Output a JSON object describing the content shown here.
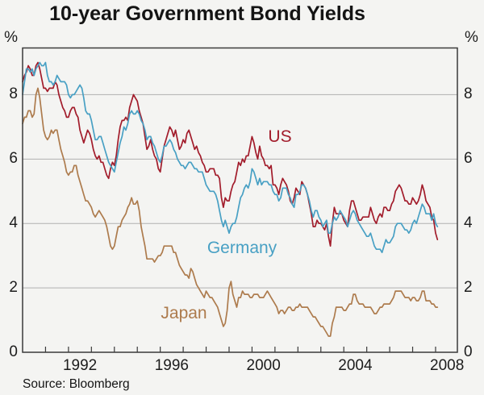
{
  "title": "10-year Government Bond Yields",
  "percent_left": "%",
  "percent_right": "%",
  "source": "Source: Bloomberg",
  "chart_data": {
    "type": "line",
    "title": "10-year Government Bond Yields",
    "xlabel": "",
    "ylabel": "%",
    "x_start_year": 1990,
    "x_points_per_year": 12,
    "x_end": 2008.95,
    "ylim": [
      0,
      9.45
    ],
    "y_ticks": [
      0,
      2,
      4,
      6,
      8
    ],
    "gridlines": [
      2,
      4,
      6,
      8
    ],
    "grid_color": "#b0b0b0",
    "frame_color": "#3a3a3a",
    "x_tick_years": [
      1991,
      1992,
      1993,
      1994,
      1995,
      1996,
      1997,
      1998,
      1999,
      2000,
      2001,
      2002,
      2003,
      2004,
      2005,
      2006,
      2007,
      2008
    ],
    "x_label_years": [
      1992,
      1996,
      2000,
      2004,
      2008
    ],
    "legend_position": "inline-annotations",
    "series": [
      {
        "name": "US",
        "color": "#a21c2b",
        "values": [
          8.4,
          8.6,
          8.7,
          8.9,
          8.8,
          8.6,
          8.6,
          8.9,
          9.0,
          8.8,
          8.5,
          8.2,
          8.2,
          8.1,
          8.2,
          8.2,
          8.2,
          8.4,
          8.3,
          8.0,
          7.8,
          7.6,
          7.5,
          7.3,
          7.3,
          7.5,
          7.6,
          7.6,
          7.4,
          7.3,
          6.9,
          6.7,
          6.5,
          6.7,
          6.9,
          6.8,
          6.6,
          6.3,
          6.1,
          6.0,
          6.1,
          5.9,
          5.9,
          5.7,
          5.5,
          5.4,
          5.7,
          5.9,
          5.8,
          6.1,
          6.6,
          7.0,
          7.2,
          7.2,
          7.3,
          7.2,
          7.6,
          7.8,
          8.0,
          7.9,
          7.8,
          7.5,
          7.3,
          7.1,
          6.7,
          6.3,
          6.4,
          6.6,
          6.3,
          6.1,
          6.0,
          5.7,
          5.6,
          6.0,
          6.4,
          6.6,
          6.8,
          7.0,
          6.9,
          6.7,
          6.9,
          6.6,
          6.3,
          6.4,
          6.6,
          6.5,
          6.8,
          6.9,
          6.7,
          6.5,
          6.3,
          6.4,
          6.2,
          6.1,
          5.9,
          5.8,
          5.6,
          5.6,
          5.7,
          5.7,
          5.7,
          5.5,
          5.5,
          5.4,
          4.8,
          4.5,
          4.8,
          4.7,
          4.7,
          5.0,
          5.2,
          5.3,
          5.6,
          5.9,
          5.8,
          6.0,
          5.9,
          6.1,
          6.1,
          6.4,
          6.7,
          6.5,
          6.2,
          6.0,
          6.4,
          6.1,
          6.0,
          5.8,
          5.8,
          5.7,
          5.8,
          5.2,
          5.2,
          5.1,
          4.9,
          5.2,
          5.4,
          5.3,
          5.2,
          5.0,
          4.7,
          4.6,
          4.8,
          5.1,
          5.0,
          4.9,
          5.3,
          5.2,
          5.1,
          4.9,
          4.6,
          4.3,
          3.9,
          3.9,
          4.1,
          4.0,
          4.0,
          3.9,
          3.8,
          4.0,
          3.6,
          3.3,
          4.0,
          4.5,
          4.3,
          4.3,
          4.3,
          4.3,
          4.1,
          4.0,
          3.9,
          4.4,
          4.7,
          4.7,
          4.5,
          4.3,
          4.1,
          4.1,
          4.2,
          4.2,
          4.2,
          4.2,
          4.5,
          4.3,
          4.1,
          4.0,
          4.2,
          4.3,
          4.2,
          4.5,
          4.5,
          4.4,
          4.4,
          4.6,
          4.7,
          5.0,
          5.1,
          5.2,
          5.1,
          4.9,
          4.7,
          4.7,
          4.6,
          4.6,
          4.8,
          4.7,
          4.6,
          4.7,
          4.9,
          5.2,
          5.0,
          4.7,
          4.6,
          4.5,
          4.2,
          4.1,
          3.7,
          3.5
        ]
      },
      {
        "name": "Germany",
        "color": "#48a0c4",
        "values": [
          8.0,
          8.4,
          8.8,
          8.8,
          8.7,
          8.8,
          8.6,
          8.8,
          8.9,
          9.0,
          8.9,
          8.9,
          9.0,
          8.6,
          8.4,
          8.4,
          8.3,
          8.4,
          8.6,
          8.5,
          8.4,
          8.4,
          8.4,
          8.3,
          8.0,
          7.9,
          8.0,
          8.0,
          8.1,
          8.2,
          8.3,
          8.2,
          7.9,
          7.5,
          7.4,
          7.4,
          7.2,
          6.9,
          6.6,
          6.6,
          6.7,
          6.7,
          6.5,
          6.3,
          6.1,
          5.9,
          5.8,
          5.7,
          5.6,
          5.9,
          6.2,
          6.5,
          6.7,
          7.0,
          6.9,
          7.1,
          7.4,
          7.5,
          7.4,
          7.4,
          7.5,
          7.4,
          7.2,
          7.1,
          6.9,
          6.6,
          6.7,
          6.7,
          6.5,
          6.4,
          6.2,
          6.0,
          5.9,
          6.1,
          6.4,
          6.4,
          6.5,
          6.6,
          6.5,
          6.3,
          6.2,
          6.0,
          5.9,
          5.8,
          5.8,
          5.7,
          5.8,
          5.9,
          5.9,
          5.8,
          5.7,
          5.7,
          5.6,
          5.6,
          5.6,
          5.4,
          5.2,
          5.1,
          5.0,
          5.0,
          5.0,
          4.9,
          4.7,
          4.4,
          4.1,
          3.9,
          4.1,
          3.9,
          3.7,
          3.9,
          4.0,
          4.0,
          4.2,
          4.5,
          4.8,
          4.9,
          5.1,
          5.2,
          5.1,
          5.3,
          5.7,
          5.6,
          5.4,
          5.2,
          5.4,
          5.2,
          5.3,
          5.3,
          5.3,
          5.2,
          5.2,
          5.0,
          4.9,
          4.9,
          4.7,
          4.8,
          5.1,
          5.1,
          5.1,
          4.9,
          4.8,
          4.6,
          4.5,
          4.9,
          4.9,
          5.0,
          5.2,
          5.2,
          5.1,
          4.9,
          4.7,
          4.4,
          4.2,
          4.4,
          4.4,
          4.2,
          4.1,
          3.9,
          4.0,
          4.1,
          3.7,
          3.7,
          4.0,
          4.2,
          4.1,
          4.2,
          4.4,
          4.3,
          4.2,
          4.1,
          3.9,
          4.1,
          4.3,
          4.4,
          4.3,
          4.1,
          4.0,
          3.9,
          3.8,
          3.7,
          3.6,
          3.6,
          3.7,
          3.5,
          3.3,
          3.2,
          3.2,
          3.2,
          3.1,
          3.3,
          3.5,
          3.4,
          3.4,
          3.5,
          3.6,
          3.9,
          4.0,
          4.0,
          4.0,
          3.9,
          3.8,
          3.8,
          3.7,
          3.8,
          4.0,
          4.1,
          4.0,
          4.2,
          4.4,
          4.6,
          4.5,
          4.3,
          4.3,
          4.3,
          4.1,
          4.3,
          4.0,
          3.9
        ]
      },
      {
        "name": "Japan",
        "color": "#ad7b4d",
        "values": [
          7.1,
          7.3,
          7.3,
          7.5,
          7.5,
          7.3,
          7.4,
          8.0,
          8.2,
          7.9,
          7.4,
          6.9,
          6.7,
          6.6,
          6.7,
          6.9,
          6.8,
          6.9,
          6.9,
          6.6,
          6.3,
          6.1,
          5.9,
          5.6,
          5.5,
          5.6,
          5.6,
          5.8,
          5.8,
          5.5,
          5.3,
          5.1,
          4.9,
          4.7,
          4.7,
          4.6,
          4.5,
          4.3,
          4.2,
          4.3,
          4.4,
          4.3,
          4.2,
          4.1,
          3.9,
          3.6,
          3.3,
          3.2,
          3.3,
          3.6,
          3.9,
          3.9,
          4.1,
          4.2,
          4.3,
          4.5,
          4.6,
          4.8,
          4.6,
          4.6,
          4.7,
          4.4,
          3.9,
          3.6,
          3.3,
          2.9,
          2.9,
          2.9,
          2.9,
          2.8,
          2.9,
          3.0,
          3.0,
          3.1,
          3.3,
          3.3,
          3.3,
          3.3,
          3.3,
          3.1,
          3.1,
          2.9,
          2.7,
          2.6,
          2.5,
          2.4,
          2.4,
          2.3,
          2.6,
          2.5,
          2.3,
          2.1,
          2.0,
          1.9,
          1.8,
          1.7,
          1.9,
          1.8,
          1.7,
          1.7,
          1.6,
          1.5,
          1.4,
          1.2,
          1.0,
          0.8,
          0.9,
          1.3,
          2.0,
          2.2,
          1.8,
          1.6,
          1.4,
          1.7,
          1.7,
          1.9,
          1.8,
          1.8,
          1.8,
          1.7,
          1.7,
          1.8,
          1.8,
          1.8,
          1.7,
          1.7,
          1.7,
          1.8,
          1.9,
          1.8,
          1.7,
          1.6,
          1.5,
          1.4,
          1.2,
          1.3,
          1.3,
          1.2,
          1.3,
          1.4,
          1.4,
          1.3,
          1.3,
          1.4,
          1.4,
          1.5,
          1.4,
          1.4,
          1.4,
          1.4,
          1.3,
          1.2,
          1.1,
          1.1,
          1.0,
          0.9,
          0.8,
          0.8,
          0.7,
          0.6,
          0.5,
          0.5,
          0.9,
          1.1,
          1.4,
          1.4,
          1.4,
          1.4,
          1.3,
          1.3,
          1.4,
          1.5,
          1.5,
          1.8,
          1.8,
          1.6,
          1.5,
          1.5,
          1.5,
          1.4,
          1.4,
          1.4,
          1.4,
          1.3,
          1.2,
          1.2,
          1.3,
          1.4,
          1.4,
          1.5,
          1.5,
          1.5,
          1.5,
          1.6,
          1.7,
          1.9,
          1.9,
          1.9,
          1.9,
          1.8,
          1.7,
          1.7,
          1.7,
          1.6,
          1.7,
          1.7,
          1.6,
          1.6,
          1.7,
          1.9,
          1.9,
          1.6,
          1.6,
          1.6,
          1.5,
          1.5,
          1.4,
          1.4
        ]
      }
    ]
  }
}
